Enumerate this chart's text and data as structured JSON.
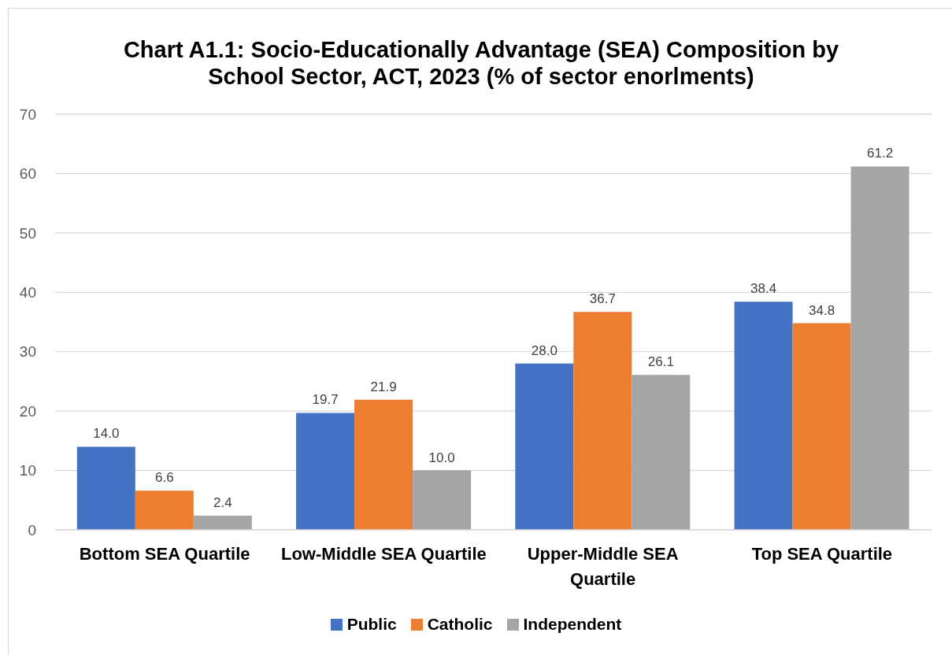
{
  "chart_data": {
    "type": "bar",
    "title": "Chart A1.1: Socio-Educationally Advantage (SEA) Composition by School Sector, ACT, 2023 (% of sector enorlments)",
    "categories": [
      "Bottom SEA Quartile",
      "Low-Middle SEA Quartile",
      "Upper-Middle SEA Quartile",
      "Top SEA Quartile"
    ],
    "series": [
      {
        "name": "Public",
        "color": "#4472c4",
        "values": [
          14.0,
          19.7,
          28.0,
          38.4
        ],
        "value_labels": [
          "14.0",
          "19.7",
          "28.0",
          "38.4"
        ]
      },
      {
        "name": "Catholic",
        "color": "#ed7d31",
        "values": [
          6.6,
          21.9,
          36.7,
          34.8
        ],
        "value_labels": [
          "6.6",
          "21.9",
          "36.7",
          "34.8"
        ]
      },
      {
        "name": "Independent",
        "color": "#a5a5a5",
        "values": [
          2.4,
          10.0,
          26.1,
          61.2
        ],
        "value_labels": [
          "2.4",
          "10.0",
          "26.1",
          "61.2"
        ]
      }
    ],
    "ylim": [
      0,
      70
    ],
    "yticks": [
      0,
      10,
      20,
      30,
      40,
      50,
      60,
      70
    ],
    "grid": "y",
    "legend": "bottom"
  }
}
